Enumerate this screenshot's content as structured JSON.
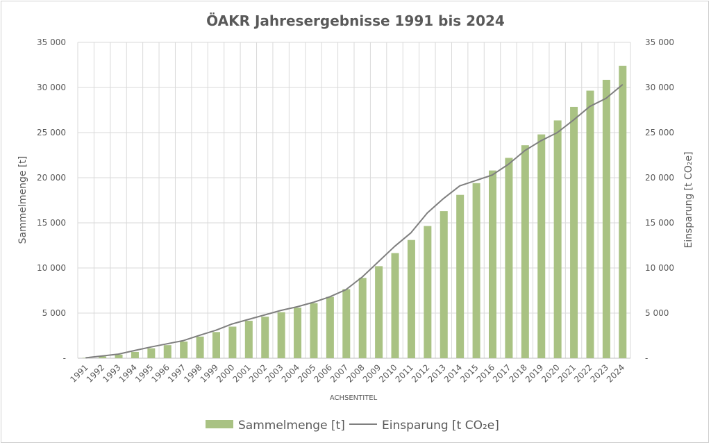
{
  "chart_data": {
    "type": "bar",
    "title": "ÖAKR Jahresergebnisse 1991 bis 2024",
    "xlabel": "ACHSENTITEL",
    "ylabel_left": "Sammelmenge [t]",
    "ylabel_right": "Einsparung [t CO₂e]",
    "ylim": [
      0,
      35000
    ],
    "yticks": [
      0,
      5000,
      10000,
      15000,
      20000,
      25000,
      30000,
      35000
    ],
    "ytick_labels": [
      "-",
      "5 000",
      "10 000",
      "15 000",
      "20 000",
      "25 000",
      "30 000",
      "35 000"
    ],
    "grid": true,
    "legend_position": "bottom",
    "categories": [
      "1991",
      "1992",
      "1993",
      "1994",
      "1995",
      "1996",
      "1997",
      "1998",
      "1999",
      "2000",
      "2001",
      "2002",
      "2003",
      "2004",
      "2005",
      "2006",
      "2007",
      "2008",
      "2009",
      "2010",
      "2011",
      "2012",
      "2013",
      "2014",
      "2015",
      "2016",
      "2017",
      "2018",
      "2019",
      "2020",
      "2021",
      "2022",
      "2023",
      "2024"
    ],
    "series": [
      {
        "name": "Sammelmenge [t]",
        "type": "bar",
        "axis": "left",
        "color": "#a9c283",
        "values": [
          50,
          200,
          400,
          700,
          1100,
          1450,
          1850,
          2400,
          2900,
          3500,
          4150,
          4600,
          5100,
          5600,
          6100,
          6800,
          7650,
          8900,
          10200,
          11650,
          13100,
          14650,
          16300,
          18100,
          19400,
          20800,
          22200,
          23600,
          24800,
          26350,
          27850,
          29650,
          30850,
          32400
        ]
      },
      {
        "name": "Einsparung [t CO₂e]",
        "type": "line",
        "axis": "right",
        "color": "#7f7f7f",
        "values": [
          50,
          250,
          450,
          850,
          1250,
          1600,
          1950,
          2550,
          3100,
          3800,
          4300,
          4800,
          5300,
          5700,
          6200,
          6800,
          7600,
          9000,
          10700,
          12400,
          13900,
          16100,
          17700,
          19100,
          19700,
          20300,
          21500,
          23000,
          24100,
          25000,
          26400,
          27900,
          28800,
          30300
        ]
      }
    ]
  }
}
